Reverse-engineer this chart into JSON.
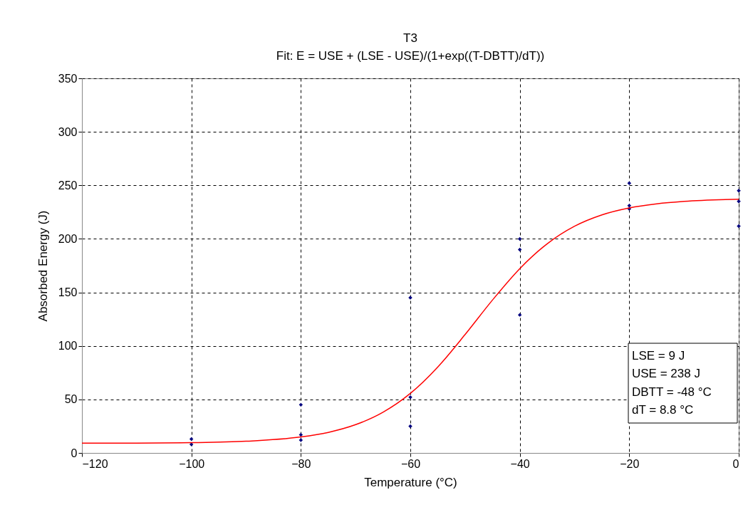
{
  "chart_data": {
    "type": "scatter",
    "title": "T3",
    "subtitle": "Fit: E = USE + (LSE - USE)/(1+exp((T-DBTT)/dT))",
    "xlabel": "Temperature (°C)",
    "ylabel": "Absorbed Energy (J)",
    "xlim": [
      -120,
      0
    ],
    "xticks": [
      -120,
      -100,
      -80,
      -60,
      -40,
      -20,
      0
    ],
    "ylim": [
      0,
      350
    ],
    "yticks": [
      0,
      50,
      100,
      150,
      200,
      250,
      300,
      350
    ],
    "grid": true,
    "annotations": [
      "LSE = 9 J",
      "USE = 238 J",
      "DBTT = -48 °C",
      "dT = 8.8 °C"
    ],
    "series": [
      {
        "color": "#000080",
        "marker": "diamond",
        "x": [
          -100,
          -100,
          -80,
          -80,
          -80,
          -60,
          -60,
          -60,
          -40,
          -40,
          -40,
          -20,
          -20,
          -20,
          0,
          0,
          0
        ],
        "values": [
          13,
          8,
          45,
          17,
          12,
          145,
          52,
          25,
          200,
          190,
          129,
          252,
          231,
          228,
          245,
          235,
          212
        ]
      },
      {
        "type": "line",
        "color": "#ff0000",
        "line_style": "solid",
        "x": [
          -120,
          -110,
          -100,
          -90,
          -80,
          -75,
          -70,
          -65,
          -60,
          -55,
          -50,
          -45,
          -40,
          -35,
          -30,
          -25,
          -20,
          -15,
          -10,
          0
        ],
        "values": [
          9.1,
          9.2,
          9.6,
          10.9,
          14.9,
          19.2,
          26.4,
          38.0,
          55.6,
          80.2,
          110.6,
          142.8,
          172.2,
          195.4,
          211.8,
          222.4,
          228.9,
          232.7,
          235.0,
          237.0
        ]
      }
    ]
  }
}
